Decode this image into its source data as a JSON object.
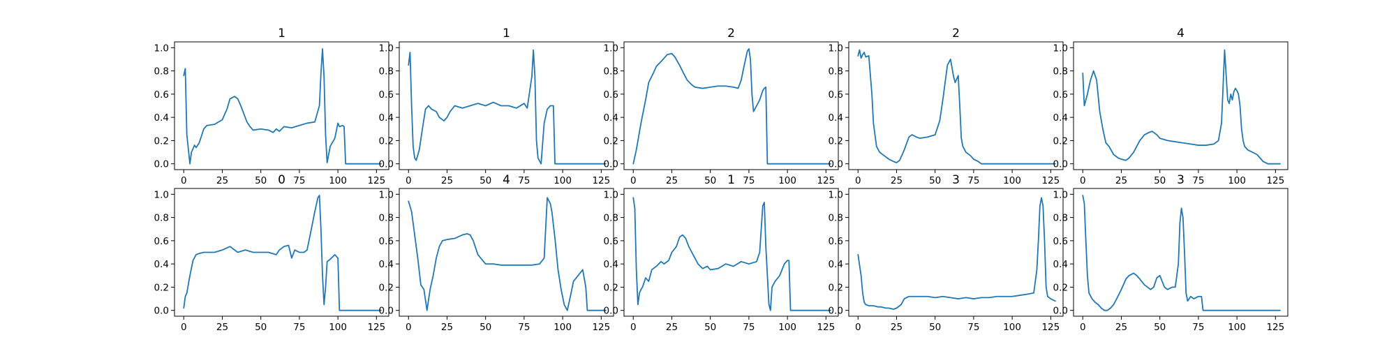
{
  "colors": {
    "line": "#1f77b4"
  },
  "chart_data": [
    {
      "type": "line",
      "title": "1",
      "xlim": [
        -6,
        133
      ],
      "ylim": [
        -0.05,
        1.05
      ],
      "xticks": [
        0,
        25,
        50,
        75,
        100,
        125
      ],
      "yticks": [
        0.0,
        0.2,
        0.4,
        0.6,
        0.8,
        1.0
      ],
      "series": [
        {
          "x": [
            0,
            1,
            2,
            4,
            5,
            7,
            8,
            10,
            13,
            15,
            20,
            25,
            28,
            30,
            33,
            35,
            37,
            39,
            41,
            43,
            45,
            50,
            55,
            58,
            60,
            62,
            65,
            70,
            75,
            80,
            85,
            88,
            89,
            90,
            91,
            92,
            93,
            95,
            98,
            100,
            101,
            103,
            104,
            105,
            128
          ],
          "y": [
            0.76,
            0.82,
            0.25,
            0.0,
            0.1,
            0.16,
            0.14,
            0.18,
            0.3,
            0.33,
            0.34,
            0.38,
            0.47,
            0.56,
            0.58,
            0.56,
            0.5,
            0.43,
            0.36,
            0.32,
            0.29,
            0.3,
            0.29,
            0.27,
            0.3,
            0.28,
            0.32,
            0.31,
            0.33,
            0.35,
            0.36,
            0.5,
            0.78,
            0.99,
            0.75,
            0.25,
            0.01,
            0.15,
            0.22,
            0.35,
            0.32,
            0.33,
            0.32,
            0.0,
            0.0
          ]
        }
      ]
    },
    {
      "type": "line",
      "title": "1",
      "xlim": [
        -6,
        133
      ],
      "ylim": [
        -0.05,
        1.05
      ],
      "xticks": [
        0,
        25,
        50,
        75,
        100,
        125
      ],
      "yticks": [
        0.0,
        0.2,
        0.4,
        0.6,
        0.8,
        1.0
      ],
      "series": [
        {
          "x": [
            0,
            1,
            2,
            3,
            4,
            5,
            7,
            9,
            11,
            13,
            15,
            18,
            20,
            23,
            25,
            27,
            30,
            35,
            40,
            45,
            50,
            55,
            60,
            65,
            70,
            75,
            77,
            80,
            81,
            82,
            83,
            84,
            86,
            88,
            90,
            92,
            94,
            95,
            96,
            128
          ],
          "y": [
            0.85,
            0.96,
            0.5,
            0.15,
            0.05,
            0.03,
            0.12,
            0.3,
            0.47,
            0.5,
            0.47,
            0.45,
            0.4,
            0.37,
            0.4,
            0.45,
            0.5,
            0.48,
            0.5,
            0.52,
            0.5,
            0.53,
            0.5,
            0.5,
            0.48,
            0.52,
            0.48,
            0.75,
            0.98,
            0.75,
            0.2,
            0.05,
            0.0,
            0.35,
            0.47,
            0.5,
            0.5,
            0.0,
            0.0,
            0.0
          ]
        }
      ]
    },
    {
      "type": "line",
      "title": "2",
      "xlim": [
        -6,
        133
      ],
      "ylim": [
        -0.05,
        1.05
      ],
      "xticks": [
        0,
        25,
        50,
        75,
        100,
        125
      ],
      "yticks": [
        0.0,
        0.2,
        0.4,
        0.6,
        0.8,
        1.0
      ],
      "series": [
        {
          "x": [
            0,
            2,
            5,
            8,
            10,
            13,
            15,
            18,
            20,
            22,
            25,
            27,
            30,
            33,
            35,
            38,
            40,
            45,
            50,
            55,
            60,
            65,
            68,
            70,
            72,
            74,
            75,
            76,
            77,
            78,
            80,
            82,
            84,
            85,
            86,
            87,
            128
          ],
          "y": [
            0.0,
            0.12,
            0.35,
            0.55,
            0.7,
            0.78,
            0.84,
            0.88,
            0.91,
            0.94,
            0.95,
            0.92,
            0.85,
            0.77,
            0.72,
            0.68,
            0.66,
            0.65,
            0.66,
            0.67,
            0.67,
            0.66,
            0.65,
            0.72,
            0.85,
            0.97,
            0.99,
            0.9,
            0.6,
            0.45,
            0.5,
            0.55,
            0.63,
            0.65,
            0.66,
            0.0,
            0.0
          ]
        }
      ]
    },
    {
      "type": "line",
      "title": "2",
      "xlim": [
        -6,
        133
      ],
      "ylim": [
        -0.05,
        1.05
      ],
      "xticks": [
        0,
        25,
        50,
        75,
        100,
        125
      ],
      "yticks": [
        0.0,
        0.2,
        0.4,
        0.6,
        0.8,
        1.0
      ],
      "series": [
        {
          "x": [
            0,
            1,
            2,
            3,
            4,
            5,
            7,
            9,
            10,
            12,
            14,
            17,
            20,
            23,
            25,
            27,
            30,
            33,
            35,
            38,
            40,
            45,
            50,
            53,
            55,
            58,
            60,
            62,
            63,
            65,
            66,
            67,
            68,
            70,
            73,
            75,
            78,
            80,
            128
          ],
          "y": [
            0.93,
            0.98,
            0.91,
            0.94,
            0.96,
            0.92,
            0.93,
            0.6,
            0.35,
            0.15,
            0.1,
            0.07,
            0.04,
            0.02,
            0.01,
            0.03,
            0.12,
            0.23,
            0.25,
            0.23,
            0.22,
            0.23,
            0.25,
            0.37,
            0.55,
            0.85,
            0.9,
            0.75,
            0.7,
            0.76,
            0.5,
            0.22,
            0.15,
            0.1,
            0.07,
            0.04,
            0.02,
            0.0,
            0.0
          ]
        }
      ]
    },
    {
      "type": "line",
      "title": "4",
      "xlim": [
        -6,
        133
      ],
      "ylim": [
        -0.05,
        1.05
      ],
      "xticks": [
        0,
        25,
        50,
        75,
        100,
        125
      ],
      "yticks": [
        0.0,
        0.2,
        0.4,
        0.6,
        0.8,
        1.0
      ],
      "series": [
        {
          "x": [
            0,
            1,
            3,
            5,
            7,
            9,
            11,
            13,
            15,
            17,
            20,
            23,
            25,
            28,
            30,
            33,
            35,
            37,
            40,
            43,
            45,
            48,
            50,
            55,
            60,
            65,
            70,
            75,
            80,
            85,
            88,
            90,
            92,
            94,
            95,
            96,
            97,
            98,
            99,
            100,
            101,
            102,
            103,
            104,
            105,
            107,
            110,
            113,
            115,
            117,
            120,
            122,
            125,
            128
          ],
          "y": [
            0.78,
            0.5,
            0.6,
            0.72,
            0.8,
            0.72,
            0.45,
            0.3,
            0.18,
            0.15,
            0.08,
            0.05,
            0.04,
            0.03,
            0.05,
            0.1,
            0.15,
            0.2,
            0.25,
            0.27,
            0.28,
            0.25,
            0.22,
            0.2,
            0.19,
            0.18,
            0.17,
            0.16,
            0.16,
            0.17,
            0.2,
            0.35,
            0.98,
            0.55,
            0.52,
            0.6,
            0.55,
            0.62,
            0.65,
            0.63,
            0.6,
            0.5,
            0.3,
            0.2,
            0.15,
            0.12,
            0.1,
            0.08,
            0.05,
            0.02,
            0.0,
            0.0,
            0.0,
            0.0
          ]
        }
      ]
    },
    {
      "type": "line",
      "title": "0",
      "xlim": [
        -6,
        133
      ],
      "ylim": [
        -0.05,
        1.05
      ],
      "xticks": [
        0,
        25,
        50,
        75,
        100,
        125
      ],
      "yticks": [
        0.0,
        0.2,
        0.4,
        0.6,
        0.8,
        1.0
      ],
      "series": [
        {
          "x": [
            0,
            1,
            2,
            4,
            6,
            8,
            10,
            13,
            15,
            20,
            25,
            30,
            35,
            40,
            45,
            50,
            55,
            60,
            62,
            65,
            68,
            70,
            72,
            75,
            78,
            80,
            82,
            85,
            87,
            88,
            89,
            90,
            91,
            92,
            93,
            95,
            98,
            100,
            101,
            128
          ],
          "y": [
            0.02,
            0.12,
            0.15,
            0.3,
            0.43,
            0.48,
            0.49,
            0.5,
            0.5,
            0.5,
            0.52,
            0.55,
            0.5,
            0.52,
            0.5,
            0.5,
            0.5,
            0.48,
            0.52,
            0.55,
            0.56,
            0.45,
            0.52,
            0.5,
            0.5,
            0.52,
            0.65,
            0.85,
            0.97,
            0.99,
            0.7,
            0.3,
            0.05,
            0.2,
            0.42,
            0.44,
            0.48,
            0.45,
            0.0,
            0.0
          ]
        }
      ]
    },
    {
      "type": "line",
      "title": "4",
      "xlim": [
        -6,
        133
      ],
      "ylim": [
        -0.05,
        1.05
      ],
      "xticks": [
        0,
        25,
        50,
        75,
        100,
        125
      ],
      "yticks": [
        0.0,
        0.2,
        0.4,
        0.6,
        0.8,
        1.0
      ],
      "series": [
        {
          "x": [
            0,
            2,
            4,
            6,
            8,
            10,
            12,
            14,
            16,
            18,
            20,
            22,
            25,
            30,
            35,
            38,
            40,
            42,
            45,
            50,
            55,
            60,
            70,
            80,
            85,
            88,
            90,
            92,
            93,
            95,
            97,
            99,
            101,
            103,
            105,
            107,
            110,
            113,
            115,
            116,
            117,
            128
          ],
          "y": [
            0.94,
            0.85,
            0.65,
            0.45,
            0.22,
            0.18,
            0.0,
            0.18,
            0.3,
            0.45,
            0.55,
            0.6,
            0.61,
            0.62,
            0.65,
            0.66,
            0.65,
            0.6,
            0.48,
            0.4,
            0.4,
            0.39,
            0.39,
            0.39,
            0.4,
            0.45,
            0.97,
            0.92,
            0.85,
            0.62,
            0.35,
            0.18,
            0.05,
            0.0,
            0.12,
            0.25,
            0.3,
            0.35,
            0.2,
            0.0,
            0.0,
            0.0
          ]
        }
      ]
    },
    {
      "type": "line",
      "title": "1",
      "xlim": [
        -6,
        133
      ],
      "ylim": [
        -0.05,
        1.05
      ],
      "xticks": [
        0,
        25,
        50,
        75,
        100,
        125
      ],
      "yticks": [
        0.0,
        0.2,
        0.4,
        0.6,
        0.8,
        1.0
      ],
      "series": [
        {
          "x": [
            0,
            1,
            2,
            3,
            4,
            5,
            6,
            8,
            10,
            12,
            15,
            18,
            20,
            23,
            25,
            28,
            30,
            32,
            34,
            36,
            38,
            40,
            42,
            45,
            48,
            50,
            55,
            60,
            65,
            70,
            75,
            80,
            82,
            84,
            85,
            86,
            87,
            88,
            89,
            90,
            92,
            95,
            98,
            100,
            101,
            102,
            103,
            128
          ],
          "y": [
            0.97,
            0.88,
            0.35,
            0.05,
            0.15,
            0.18,
            0.2,
            0.28,
            0.25,
            0.35,
            0.38,
            0.42,
            0.4,
            0.43,
            0.5,
            0.55,
            0.63,
            0.65,
            0.62,
            0.55,
            0.5,
            0.45,
            0.4,
            0.36,
            0.38,
            0.35,
            0.36,
            0.4,
            0.38,
            0.42,
            0.4,
            0.42,
            0.5,
            0.9,
            0.93,
            0.55,
            0.3,
            0.05,
            0.0,
            0.2,
            0.25,
            0.3,
            0.4,
            0.43,
            0.43,
            0.0,
            0.0,
            0.0
          ]
        }
      ]
    },
    {
      "type": "line",
      "title": "3",
      "xlim": [
        -6,
        133
      ],
      "ylim": [
        -0.05,
        1.05
      ],
      "xticks": [
        0,
        25,
        50,
        75,
        100,
        125
      ],
      "yticks": [
        0.0,
        0.2,
        0.4,
        0.6,
        0.8,
        1.0
      ],
      "series": [
        {
          "x": [
            0,
            2,
            3,
            4,
            5,
            7,
            10,
            13,
            15,
            18,
            20,
            23,
            25,
            28,
            30,
            33,
            35,
            40,
            45,
            50,
            55,
            60,
            65,
            70,
            75,
            80,
            85,
            90,
            95,
            100,
            105,
            110,
            114,
            116,
            117,
            118,
            119,
            120,
            121,
            122,
            123,
            125,
            128
          ],
          "y": [
            0.48,
            0.3,
            0.15,
            0.07,
            0.05,
            0.04,
            0.04,
            0.03,
            0.03,
            0.02,
            0.02,
            0.01,
            0.02,
            0.05,
            0.1,
            0.12,
            0.12,
            0.12,
            0.12,
            0.11,
            0.12,
            0.11,
            0.1,
            0.11,
            0.1,
            0.11,
            0.11,
            0.12,
            0.12,
            0.12,
            0.13,
            0.14,
            0.15,
            0.35,
            0.6,
            0.9,
            0.97,
            0.9,
            0.6,
            0.2,
            0.12,
            0.1,
            0.08
          ]
        }
      ]
    },
    {
      "type": "line",
      "title": "3",
      "xlim": [
        -6,
        133
      ],
      "ylim": [
        -0.05,
        1.05
      ],
      "xticks": [
        0,
        25,
        50,
        75,
        100,
        125
      ],
      "yticks": [
        0.0,
        0.2,
        0.4,
        0.6,
        0.8,
        1.0
      ],
      "series": [
        {
          "x": [
            0,
            1,
            2,
            3,
            4,
            6,
            8,
            10,
            12,
            14,
            16,
            18,
            20,
            22,
            25,
            28,
            30,
            33,
            35,
            37,
            40,
            42,
            44,
            46,
            48,
            50,
            53,
            55,
            58,
            60,
            62,
            63,
            64,
            65,
            66,
            67,
            68,
            70,
            72,
            75,
            77,
            78,
            128
          ],
          "y": [
            0.99,
            0.92,
            0.6,
            0.3,
            0.15,
            0.1,
            0.07,
            0.05,
            0.02,
            0.0,
            0.0,
            0.02,
            0.05,
            0.1,
            0.18,
            0.27,
            0.3,
            0.32,
            0.3,
            0.27,
            0.22,
            0.2,
            0.18,
            0.2,
            0.28,
            0.3,
            0.2,
            0.18,
            0.2,
            0.2,
            0.4,
            0.75,
            0.88,
            0.8,
            0.5,
            0.15,
            0.08,
            0.12,
            0.1,
            0.12,
            0.12,
            0.0,
            0.0
          ]
        }
      ]
    }
  ]
}
